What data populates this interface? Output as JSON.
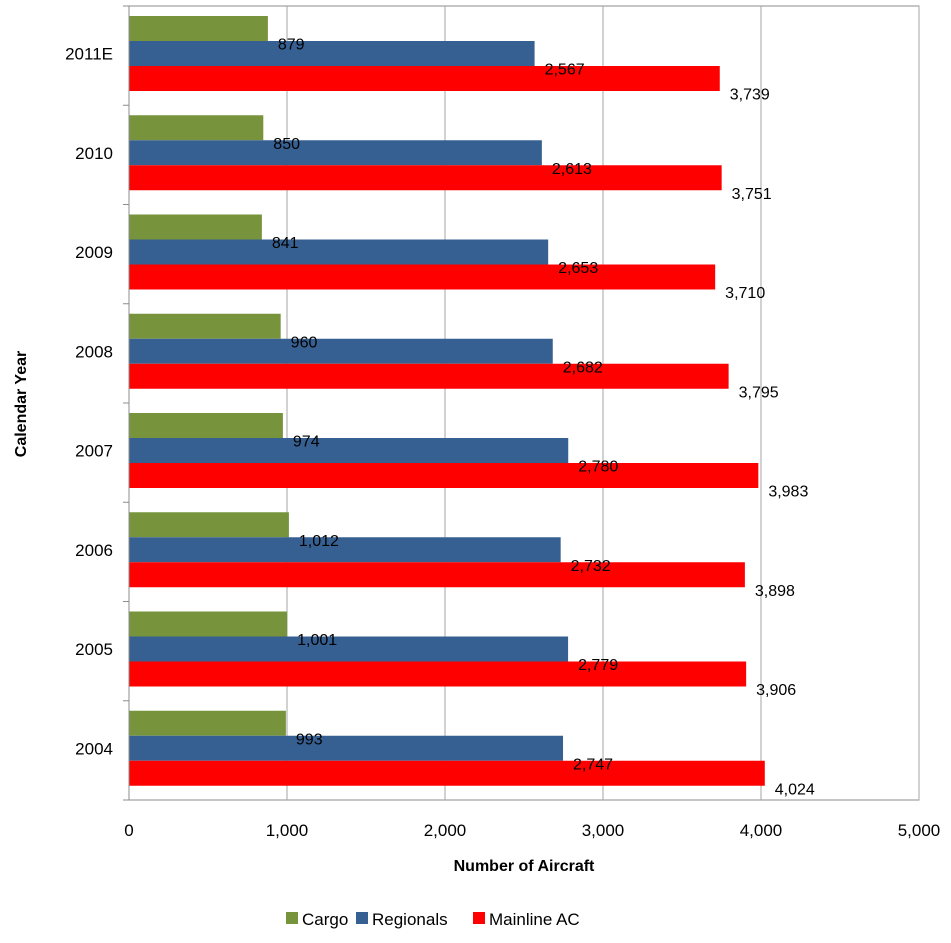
{
  "chart_data": {
    "type": "bar",
    "orientation": "horizontal",
    "categories": [
      "2011E",
      "2010",
      "2009",
      "2008",
      "2007",
      "2006",
      "2005",
      "2004"
    ],
    "series": [
      {
        "name": "Cargo",
        "color": "#77933c",
        "values": [
          879,
          850,
          841,
          960,
          974,
          1012,
          1001,
          993
        ]
      },
      {
        "name": "Regionals",
        "color": "#376092",
        "values": [
          2567,
          2613,
          2653,
          2682,
          2780,
          2732,
          2779,
          2747
        ]
      },
      {
        "name": "Mainline AC",
        "color": "#ff0000",
        "values": [
          3739,
          3751,
          3710,
          3795,
          3983,
          3898,
          3906,
          4024
        ]
      }
    ],
    "value_labels": [
      [
        "879",
        "850",
        "841",
        "960",
        "974",
        "1,012",
        "1,001",
        "993"
      ],
      [
        "2,567",
        "2,613",
        "2,653",
        "2,682",
        "2,780",
        "2,732",
        "2,779",
        "2,747"
      ],
      [
        "3,739",
        "3,751",
        "3,710",
        "3,795",
        "3,983",
        "3,898",
        "3,906",
        "4,024"
      ]
    ],
    "xlabel": "Number of Aircraft",
    "ylabel": "Calendar Year",
    "xlim": [
      0,
      5000
    ],
    "xticks": [
      0,
      1000,
      2000,
      3000,
      4000,
      5000
    ],
    "xtick_labels": [
      "0",
      "1,000",
      "2,000",
      "3,000",
      "4,000",
      "5,000"
    ],
    "grid": "vertical",
    "legend_position": "bottom"
  }
}
